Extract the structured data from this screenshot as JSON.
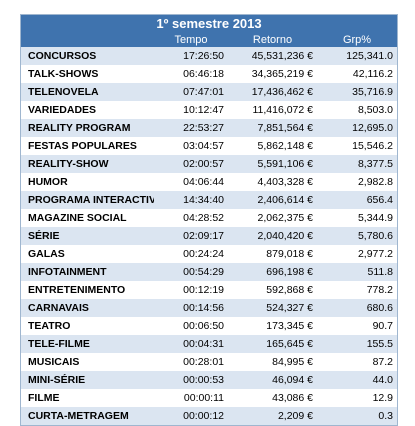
{
  "title": "1º semestre 2013",
  "headers": [
    "",
    "Tempo",
    "Retorno",
    "Grp%"
  ],
  "rows": [
    {
      "name": "CONCURSOS",
      "tempo": "17:26:50",
      "retorno": "45,531,236 €",
      "grp": "125,341.0"
    },
    {
      "name": "TALK-SHOWS",
      "tempo": "06:46:18",
      "retorno": "34,365,219 €",
      "grp": "42,116.2"
    },
    {
      "name": "TELENOVELA",
      "tempo": "07:47:01",
      "retorno": "17,436,462 €",
      "grp": "35,716.9"
    },
    {
      "name": "VARIEDADES",
      "tempo": "10:12:47",
      "retorno": "11,416,072 €",
      "grp": "8,503.0"
    },
    {
      "name": "REALITY PROGRAM",
      "tempo": "22:53:27",
      "retorno": "7,851,564 €",
      "grp": "12,695.0"
    },
    {
      "name": "FESTAS POPULARES",
      "tempo": "03:04:57",
      "retorno": "5,862,148 €",
      "grp": "15,546.2"
    },
    {
      "name": "REALITY-SHOW",
      "tempo": "02:00:57",
      "retorno": "5,591,106 €",
      "grp": "8,377.5"
    },
    {
      "name": "HUMOR",
      "tempo": "04:06:44",
      "retorno": "4,403,328 €",
      "grp": "2,982.8"
    },
    {
      "name": "PROGRAMA INTERACTIVO",
      "tempo": "14:34:40",
      "retorno": "2,406,614 €",
      "grp": "656.4"
    },
    {
      "name": "MAGAZINE SOCIAL",
      "tempo": "04:28:52",
      "retorno": "2,062,375 €",
      "grp": "5,344.9"
    },
    {
      "name": "SÉRIE",
      "tempo": "02:09:17",
      "retorno": "2,040,420 €",
      "grp": "5,780.6"
    },
    {
      "name": "GALAS",
      "tempo": "00:24:24",
      "retorno": "879,018 €",
      "grp": "2,977.2"
    },
    {
      "name": "INFOTAINMENT",
      "tempo": "00:54:29",
      "retorno": "696,198 €",
      "grp": "511.8"
    },
    {
      "name": "ENTRETENIMENTO",
      "tempo": "00:12:19",
      "retorno": "592,868 €",
      "grp": "778.2"
    },
    {
      "name": "CARNAVAIS",
      "tempo": "00:14:56",
      "retorno": "524,327 €",
      "grp": "680.6"
    },
    {
      "name": "TEATRO",
      "tempo": "00:06:50",
      "retorno": "173,345 €",
      "grp": "90.7"
    },
    {
      "name": "TELE-FILME",
      "tempo": "00:04:31",
      "retorno": "165,645 €",
      "grp": "155.5"
    },
    {
      "name": "MUSICAIS",
      "tempo": "00:28:01",
      "retorno": "84,995 €",
      "grp": "87.2"
    },
    {
      "name": "MINI-SÉRIE",
      "tempo": "00:00:53",
      "retorno": "46,094 €",
      "grp": "44.0"
    },
    {
      "name": "FILME",
      "tempo": "00:00:11",
      "retorno": "43,086 €",
      "grp": "12.9"
    },
    {
      "name": "CURTA-METRAGEM",
      "tempo": "00:00:12",
      "retorno": "2,209 €",
      "grp": "0.3"
    }
  ]
}
